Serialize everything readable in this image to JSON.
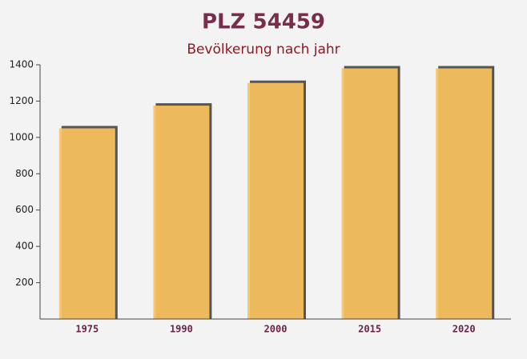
{
  "chart_data": {
    "type": "bar",
    "title": "PLZ 54459",
    "subtitle": "Bevölkerung nach jahr",
    "categories": [
      "1975",
      "1990",
      "2000",
      "2015",
      "2020"
    ],
    "values": [
      1050,
      1175,
      1300,
      1380,
      1380
    ],
    "color": "#fbc25e",
    "ylim": [
      0,
      1400
    ],
    "yticks": [
      200,
      400,
      600,
      800,
      1000,
      1200,
      1400
    ]
  }
}
